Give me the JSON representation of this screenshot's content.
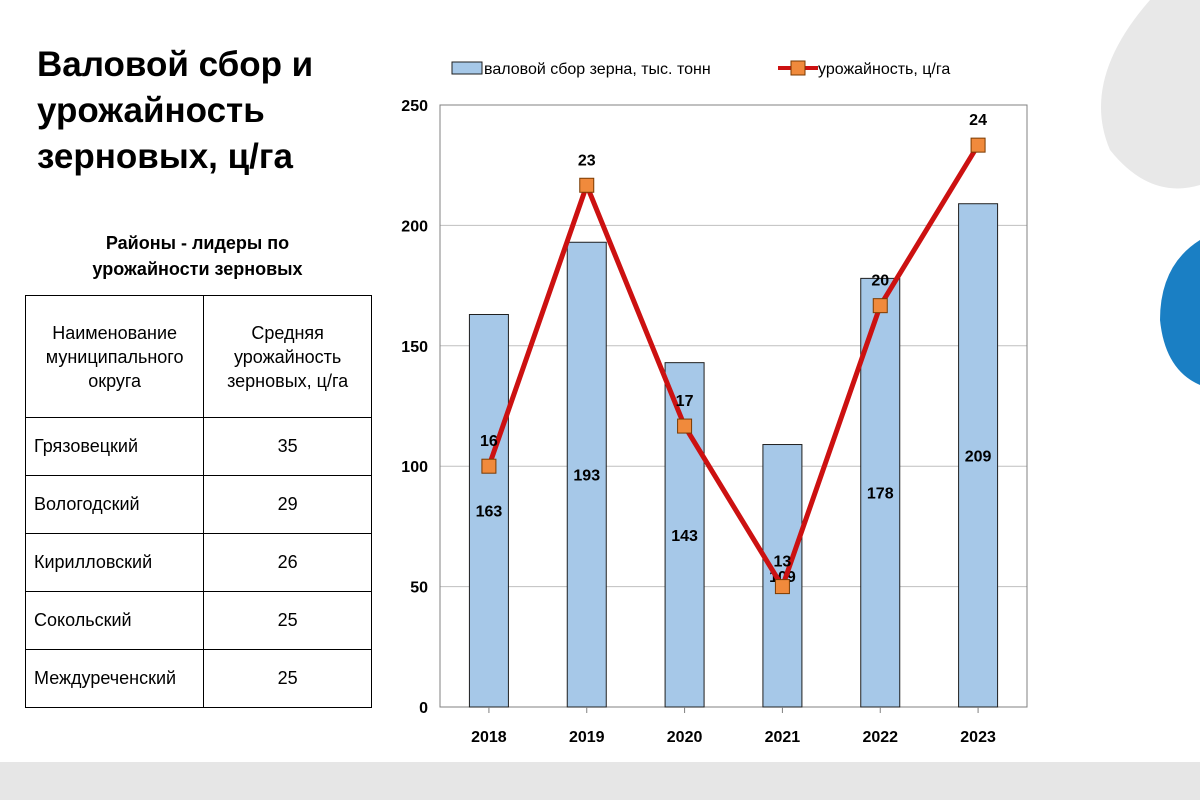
{
  "title": [
    "Валовой сбор и",
    "урожайность",
    "зерновых, ц/га"
  ],
  "table": {
    "caption": [
      "Районы - лидеры по",
      "урожайности зерновых"
    ],
    "headers": [
      [
        "Наименование",
        "муниципального",
        "округа"
      ],
      [
        "Средняя",
        "урожайность",
        "зерновых, ц/га"
      ]
    ],
    "rows": [
      {
        "name": "Грязовецкий",
        "value": "35"
      },
      {
        "name": "Вологодский",
        "value": "29"
      },
      {
        "name": "Кирилловский",
        "value": "26"
      },
      {
        "name": "Сокольский",
        "value": "25"
      },
      {
        "name": "Междуреченский",
        "value": "25"
      }
    ]
  },
  "colors": {
    "bar_fill": "#a6c8e8",
    "bar_stroke": "#1f1f1f",
    "line": "#cc1111",
    "marker_fill": "#f08a3c",
    "marker_stroke": "#7a3a00",
    "decor_gray": "#e8e8e8",
    "decor_blue": "#1a7fc4"
  },
  "chart_data": {
    "type": "bar",
    "categories": [
      "2018",
      "2019",
      "2020",
      "2021",
      "2022",
      "2023"
    ],
    "series": [
      {
        "name": "валовой сбор зерна, тыс. тонн",
        "type": "bar",
        "values": [
          163,
          193,
          143,
          109,
          178,
          209
        ]
      },
      {
        "name": "урожайность, ц/га",
        "type": "line",
        "values": [
          16,
          23,
          17,
          13,
          20,
          24
        ]
      }
    ],
    "yticks": [
      0,
      50,
      100,
      150,
      200,
      250
    ],
    "ylim": [
      0,
      250
    ],
    "line_axis_range": [
      10,
      25
    ],
    "legend_position": "top",
    "grid": true
  }
}
